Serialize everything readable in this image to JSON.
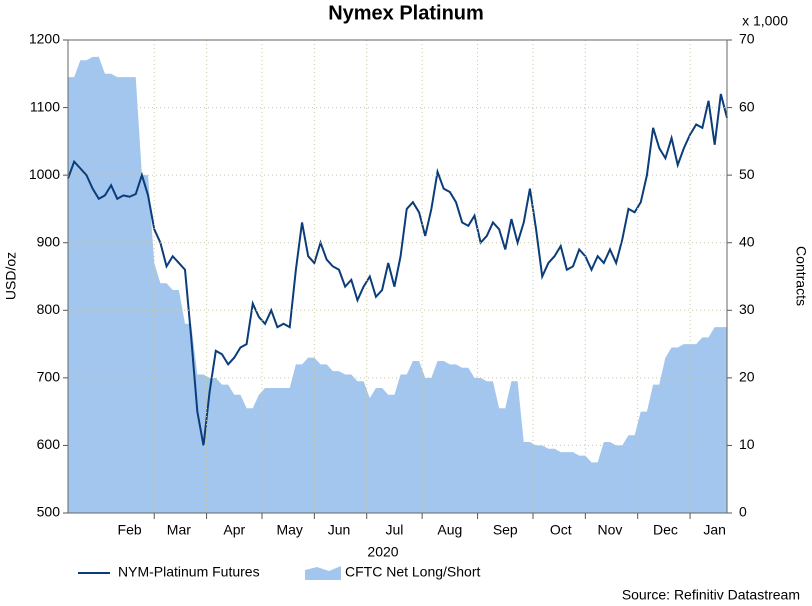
{
  "chart_data": {
    "type": "line",
    "title": "Nymex Platinum",
    "y_label": "USD/oz",
    "y2_label": "Contracts",
    "y2_unit": "x 1,000",
    "x_label": "2020",
    "source": "Source: Refinitiv Datastream",
    "grid": true,
    "legend": "bottom",
    "ylim": [
      500,
      1200
    ],
    "yticks": [
      500,
      600,
      700,
      800,
      900,
      1000,
      1100,
      1200
    ],
    "y2lim": [
      0,
      70
    ],
    "y2ticks": [
      0,
      10,
      20,
      30,
      40,
      50,
      60,
      70
    ],
    "categories": [
      null,
      null,
      null,
      null,
      null,
      null,
      null,
      null,
      null,
      null,
      "Feb",
      null,
      null,
      null,
      null,
      null,
      null,
      null,
      "Mar",
      null,
      null,
      null,
      null,
      null,
      null,
      null,
      null,
      "Apr",
      null,
      null,
      null,
      null,
      null,
      null,
      null,
      null,
      "May",
      null,
      null,
      null,
      null,
      null,
      null,
      null,
      "Jun",
      null,
      null,
      null,
      null,
      null,
      null,
      null,
      null,
      "Jul",
      null,
      null,
      null,
      null,
      null,
      null,
      null,
      null,
      "Aug",
      null,
      null,
      null,
      null,
      null,
      null,
      null,
      null,
      "Sep",
      null,
      null,
      null,
      null,
      null,
      null,
      null,
      null,
      "Oct",
      null,
      null,
      null,
      null,
      null,
      null,
      null,
      "Nov",
      null,
      null,
      null,
      null,
      null,
      null,
      null,
      null,
      "Dec",
      null,
      null,
      null,
      null,
      null,
      null,
      null,
      "Jan",
      null,
      null
    ],
    "series": [
      {
        "name": "CFTC Net Long/Short",
        "type": "area",
        "axis": "y2",
        "color": "#a3c6ee",
        "values": [
          64.5,
          64.5,
          67,
          67,
          67.5,
          67.5,
          65,
          65,
          64.5,
          64.5,
          64.5,
          64.5,
          50,
          50,
          37,
          34,
          34,
          33,
          33,
          28,
          28,
          20.5,
          20.5,
          20,
          20,
          19,
          19,
          17.5,
          17.5,
          15.5,
          15.5,
          17.5,
          18.5,
          18.5,
          18.5,
          18.5,
          18.5,
          22,
          22,
          23,
          23,
          22,
          22,
          21,
          21,
          20.5,
          20.5,
          19.5,
          19.5,
          17,
          18.5,
          18.5,
          17.5,
          17.5,
          20.5,
          20.5,
          22.5,
          22.5,
          20,
          20,
          22.5,
          22.5,
          22,
          22,
          21.5,
          21.5,
          20,
          20,
          19.5,
          19.5,
          15.5,
          15.5,
          19.5,
          19.5,
          10.5,
          10.5,
          10,
          10,
          9.5,
          9.5,
          9,
          9,
          9,
          8.5,
          8.5,
          7.5,
          7.5,
          10.5,
          10.5,
          10,
          10,
          11.5,
          11.5,
          15,
          15,
          19,
          19,
          23,
          24.5,
          24.5,
          25,
          25,
          25,
          26,
          26,
          27.5,
          27.5,
          27.5
        ]
      },
      {
        "name": "NYM-Platinum Futures",
        "type": "line",
        "axis": "y",
        "color": "#0b3d7a",
        "values": [
          995,
          1020,
          1010,
          1000,
          980,
          965,
          970,
          985,
          965,
          970,
          968,
          972,
          1000,
          970,
          920,
          900,
          865,
          880,
          870,
          860,
          760,
          650,
          600,
          680,
          740,
          735,
          720,
          730,
          745,
          750,
          810,
          790,
          780,
          800,
          775,
          780,
          775,
          860,
          930,
          880,
          870,
          900,
          875,
          865,
          860,
          835,
          845,
          815,
          835,
          850,
          820,
          830,
          870,
          835,
          880,
          950,
          960,
          945,
          910,
          950,
          1005,
          980,
          975,
          960,
          930,
          925,
          940,
          900,
          910,
          930,
          920,
          890,
          935,
          900,
          930,
          980,
          920,
          850,
          870,
          880,
          895,
          860,
          865,
          890,
          880,
          860,
          880,
          870,
          890,
          870,
          905,
          950,
          945,
          960,
          1000,
          1070,
          1040,
          1025,
          1055,
          1015,
          1040,
          1060,
          1075,
          1070,
          1110,
          1045,
          1120,
          1085
        ]
      }
    ]
  }
}
